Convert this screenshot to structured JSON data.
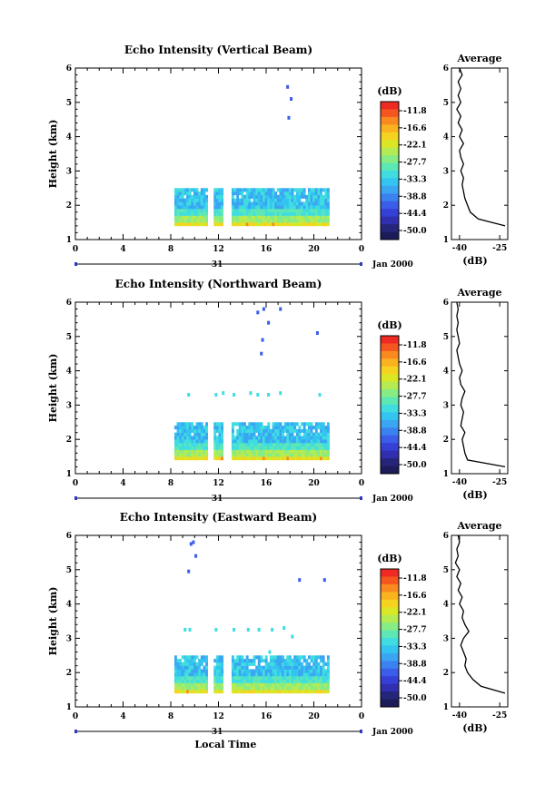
{
  "chart_data": [
    {
      "type": "heatmap",
      "title": "Echo Intensity (Vertical Beam)",
      "ylabel": "Height (km)",
      "xlabel": "",
      "xlim": [
        0,
        24
      ],
      "ylim": [
        1,
        6
      ],
      "x_ticks": [
        "0",
        "4",
        "8",
        "12",
        "16",
        "20",
        "0"
      ],
      "y_ticks": [
        "1",
        "2",
        "3",
        "4",
        "5",
        "6"
      ],
      "date_day": "31",
      "date_label": "Jan 2000",
      "data_segments": [
        [
          8.3,
          11.1
        ],
        [
          11.6,
          12.4
        ],
        [
          13.1,
          21.3
        ]
      ],
      "layer_height_km": [
        1.4,
        2.5
      ],
      "isolated_echoes": [
        [
          17.8,
          5.45
        ],
        [
          18.1,
          5.1
        ],
        [
          17.9,
          4.55
        ]
      ],
      "colorbar": {
        "title": "(dB)",
        "ticks": [
          "-11.8",
          "-16.6",
          "-22.1",
          "-27.7",
          "-33.3",
          "-38.8",
          "-44.4",
          "-50.0"
        ]
      },
      "profile": {
        "title": "Average",
        "xlabel": "(dB)",
        "xticks": [
          "-40",
          "-25"
        ],
        "ylim": [
          1,
          6
        ],
        "xlim": [
          -43,
          -22
        ],
        "height": [
          1.4,
          1.6,
          1.8,
          2.0,
          2.2,
          2.4,
          2.6,
          2.8,
          3.0,
          3.2,
          3.4,
          3.6,
          3.8,
          4.0,
          4.2,
          4.4,
          4.6,
          4.8,
          5.0,
          5.2,
          5.4,
          5.6,
          5.8,
          6.0
        ],
        "value": [
          -23,
          -33,
          -36,
          -37,
          -38,
          -38.5,
          -39,
          -38.5,
          -39.5,
          -38.5,
          -39.5,
          -40,
          -38.5,
          -40,
          -39,
          -40.5,
          -39.5,
          -41,
          -39.5,
          -40.5,
          -39.5,
          -40.5,
          -39,
          -40
        ]
      }
    },
    {
      "type": "heatmap",
      "title": "Echo Intensity (Northward Beam)",
      "ylabel": "Height (km)",
      "xlabel": "",
      "xlim": [
        0,
        24
      ],
      "ylim": [
        1,
        6
      ],
      "x_ticks": [
        "0",
        "4",
        "8",
        "12",
        "16",
        "20",
        "0"
      ],
      "y_ticks": [
        "1",
        "2",
        "3",
        "4",
        "5",
        "6"
      ],
      "date_day": "31",
      "date_label": "Jan 2000",
      "data_segments": [
        [
          8.3,
          11.1
        ],
        [
          11.6,
          12.4
        ],
        [
          13.1,
          21.3
        ]
      ],
      "layer_height_km": [
        1.4,
        2.5
      ],
      "isolated_echoes": [
        [
          15.3,
          5.7
        ],
        [
          15.8,
          5.8
        ],
        [
          17.2,
          5.8
        ],
        [
          16.2,
          5.4
        ],
        [
          20.3,
          5.1
        ],
        [
          15.7,
          4.9
        ],
        [
          15.6,
          4.5
        ],
        [
          9.5,
          3.3
        ],
        [
          11.8,
          3.3
        ],
        [
          12.4,
          3.35
        ],
        [
          13.3,
          3.3
        ],
        [
          14.7,
          3.35
        ],
        [
          15.3,
          3.3
        ],
        [
          16.2,
          3.3
        ],
        [
          17.2,
          3.35
        ],
        [
          20.5,
          3.3
        ]
      ],
      "colorbar": {
        "title": "(dB)",
        "ticks": [
          "-11.8",
          "-16.6",
          "-22.1",
          "-27.7",
          "-33.3",
          "-38.8",
          "-44.4",
          "-50.0"
        ]
      },
      "profile": {
        "title": "Average",
        "xlabel": "(dB)",
        "xticks": [
          "-40",
          "-25"
        ],
        "ylim": [
          1,
          6
        ],
        "xlim": [
          -43,
          -22
        ],
        "height": [
          1.2,
          1.4,
          1.6,
          1.8,
          2.0,
          2.2,
          2.4,
          2.6,
          2.8,
          3.0,
          3.2,
          3.4,
          3.6,
          3.8,
          4.0,
          4.2,
          4.4,
          4.6,
          4.8,
          5.0,
          5.2,
          5.4,
          5.6,
          5.8,
          6.0
        ],
        "value": [
          -23,
          -37,
          -38,
          -38.5,
          -39,
          -38,
          -39.5,
          -39,
          -38.5,
          -39.5,
          -39,
          -38,
          -39.5,
          -40,
          -39,
          -40,
          -40.5,
          -41,
          -40,
          -40.5,
          -41,
          -40.5,
          -41,
          -40.5,
          -41
        ]
      }
    },
    {
      "type": "heatmap",
      "title": "Echo Intensity (Eastward Beam)",
      "ylabel": "Height (km)",
      "xlabel": "Local Time",
      "xlim": [
        0,
        24
      ],
      "ylim": [
        1,
        6
      ],
      "x_ticks": [
        "0",
        "4",
        "8",
        "12",
        "16",
        "20",
        "0"
      ],
      "y_ticks": [
        "1",
        "2",
        "3",
        "4",
        "5",
        "6"
      ],
      "date_day": "31",
      "date_label": "Jan 2000",
      "data_segments": [
        [
          8.3,
          11.1
        ],
        [
          11.6,
          12.4
        ],
        [
          13.1,
          21.3
        ]
      ],
      "layer_height_km": [
        1.4,
        2.5
      ],
      "isolated_echoes": [
        [
          9.7,
          5.75
        ],
        [
          9.9,
          5.8
        ],
        [
          10.1,
          5.4
        ],
        [
          9.5,
          4.95
        ],
        [
          18.8,
          4.7
        ],
        [
          20.9,
          4.7
        ],
        [
          9.2,
          3.25
        ],
        [
          9.6,
          3.25
        ],
        [
          11.8,
          3.25
        ],
        [
          13.3,
          3.25
        ],
        [
          14.5,
          3.25
        ],
        [
          15.4,
          3.25
        ],
        [
          16.5,
          3.25
        ],
        [
          17.5,
          3.3
        ],
        [
          18.2,
          3.05
        ],
        [
          16.3,
          2.6
        ]
      ],
      "colorbar": {
        "title": "(dB)",
        "ticks": [
          "-11.8",
          "-16.6",
          "-22.1",
          "-27.7",
          "-33.3",
          "-38.8",
          "-44.4",
          "-50.0"
        ]
      },
      "profile": {
        "title": "Average",
        "xlabel": "(dB)",
        "xticks": [
          "-40",
          "-25"
        ],
        "ylim": [
          1,
          6
        ],
        "xlim": [
          -43,
          -22
        ],
        "height": [
          1.4,
          1.6,
          1.8,
          2.0,
          2.2,
          2.4,
          2.6,
          2.8,
          3.0,
          3.2,
          3.4,
          3.6,
          3.8,
          4.0,
          4.2,
          4.4,
          4.6,
          4.8,
          5.0,
          5.2,
          5.4,
          5.6,
          5.8,
          6.0
        ],
        "value": [
          -23,
          -32,
          -35,
          -37,
          -38,
          -37.5,
          -38.5,
          -39.5,
          -38.5,
          -36.5,
          -38,
          -39,
          -38.5,
          -40,
          -39,
          -40.5,
          -39.5,
          -41,
          -40,
          -41.5,
          -40.5,
          -41,
          -40,
          -40.5
        ]
      }
    }
  ],
  "colorbar_colors": [
    "#ee2a22",
    "#f5561f",
    "#f98a1f",
    "#fbb21f",
    "#f6d31e",
    "#dbe625",
    "#b5eb52",
    "#86ec83",
    "#5de7b5",
    "#3fdde0",
    "#33c4f0",
    "#3aa6f2",
    "#3a82f0",
    "#3a5dea",
    "#3540d6",
    "#2f2fb0",
    "#25257a",
    "#1c1c5a"
  ]
}
